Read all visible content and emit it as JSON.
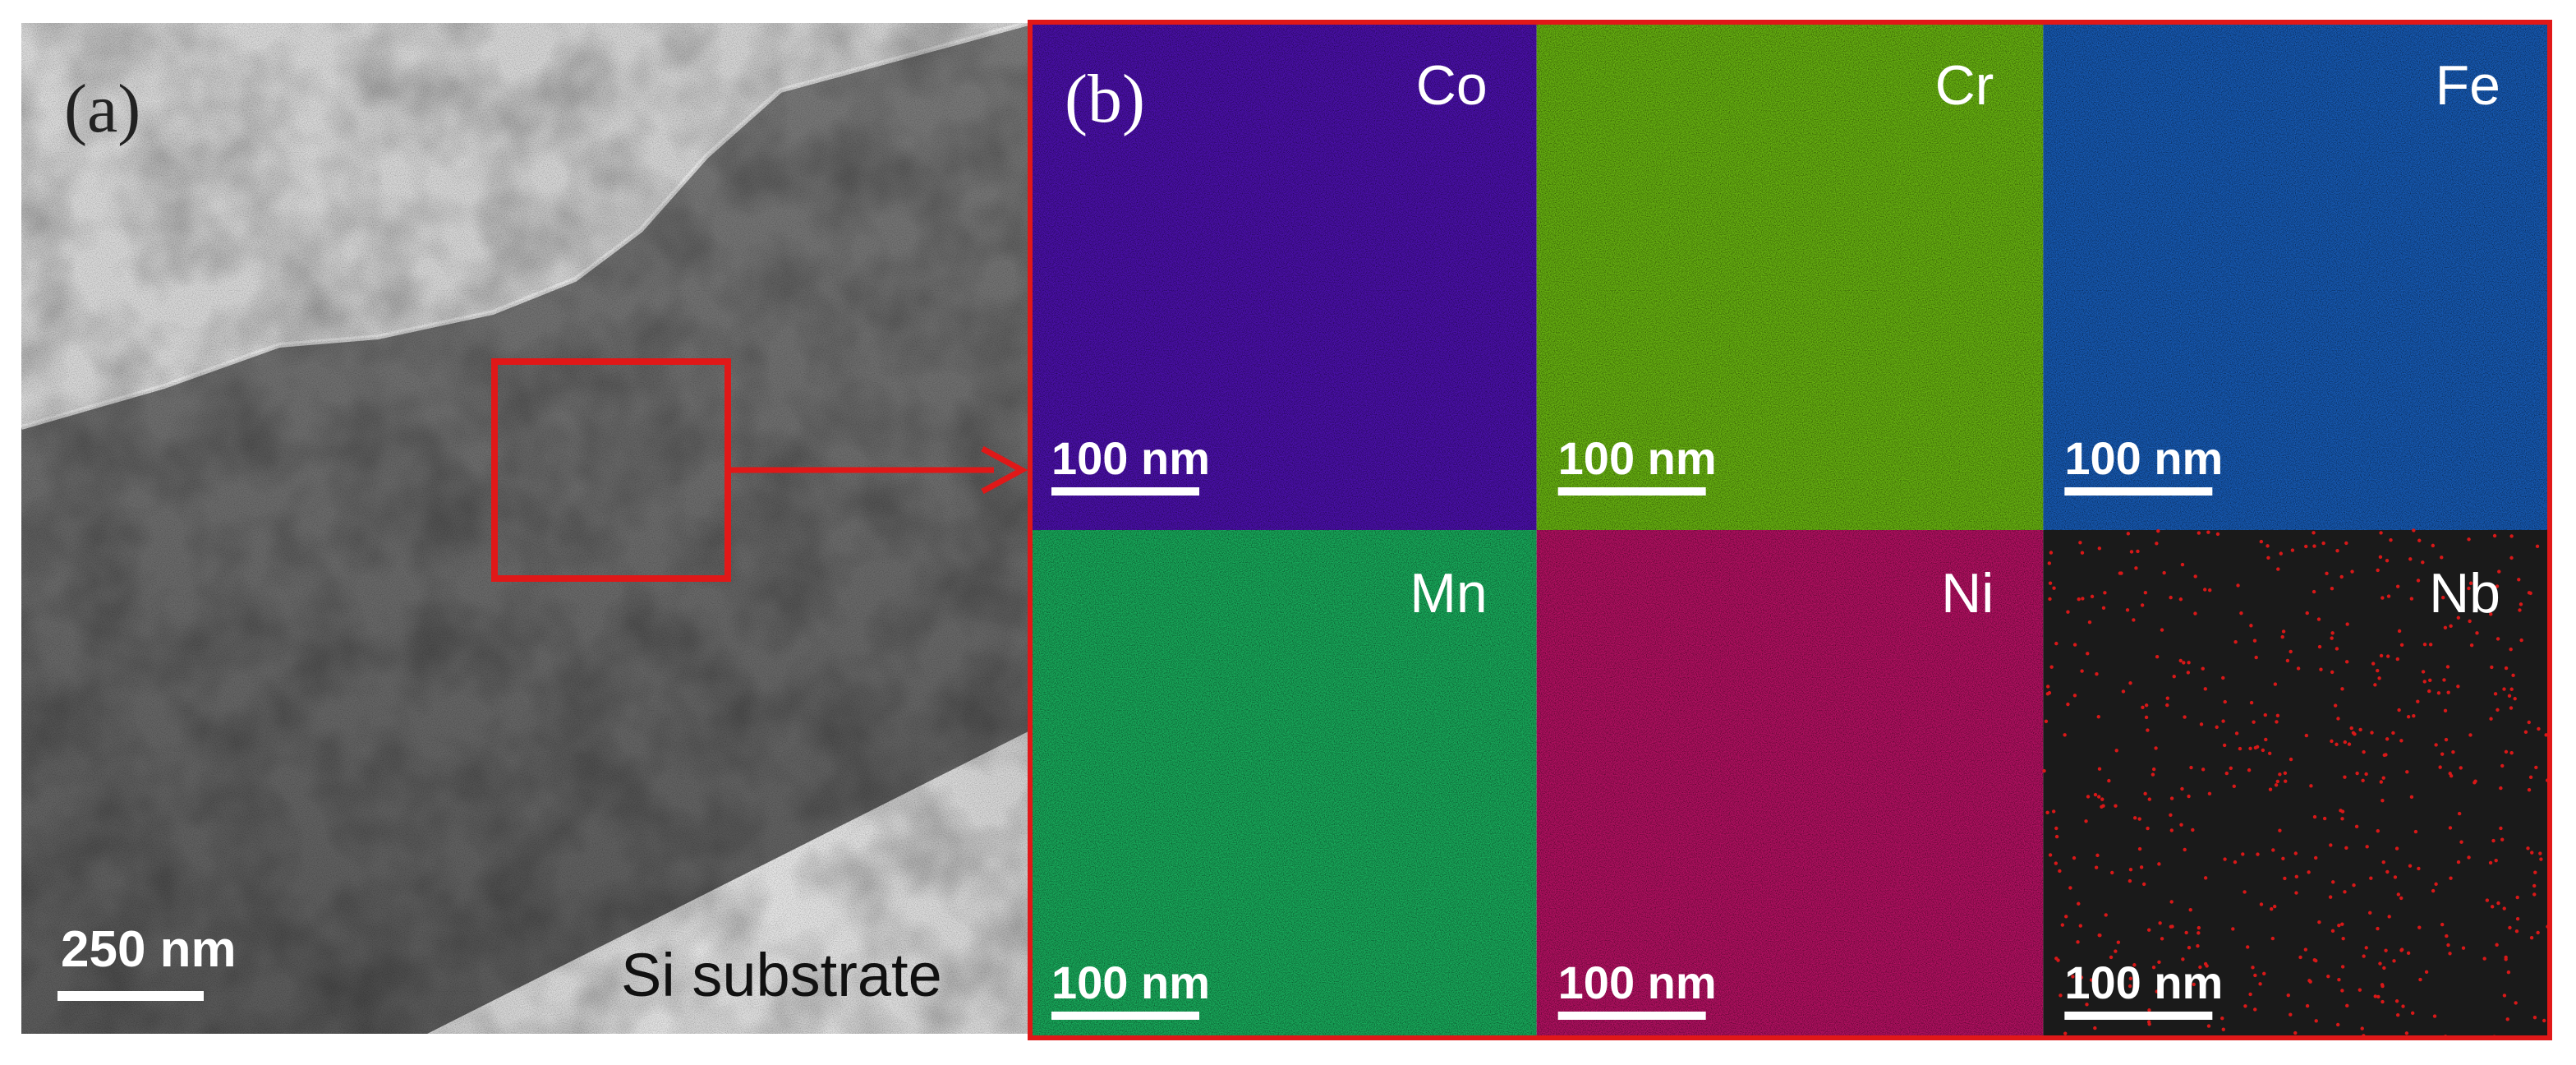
{
  "panel_a": {
    "label": "(a)",
    "scale_bar": "250 nm",
    "substrate_label": "Si substrate"
  },
  "panel_b": {
    "label": "(b)",
    "maps": [
      {
        "element": "Co",
        "scale_bar": "100 nm",
        "color": "#4a10a8"
      },
      {
        "element": "Cr",
        "scale_bar": "100 nm",
        "color": "#66b010"
      },
      {
        "element": "Fe",
        "scale_bar": "100 nm",
        "color": "#1658b0"
      },
      {
        "element": "Mn",
        "scale_bar": "100 nm",
        "color": "#18a85a"
      },
      {
        "element": "Ni",
        "scale_bar": "100 nm",
        "color": "#b01060"
      },
      {
        "element": "Nb",
        "scale_bar": "100 nm",
        "color": "#1a1a1a"
      }
    ]
  },
  "colors": {
    "highlight": "#e01818",
    "nb_dots": "#d81818"
  }
}
